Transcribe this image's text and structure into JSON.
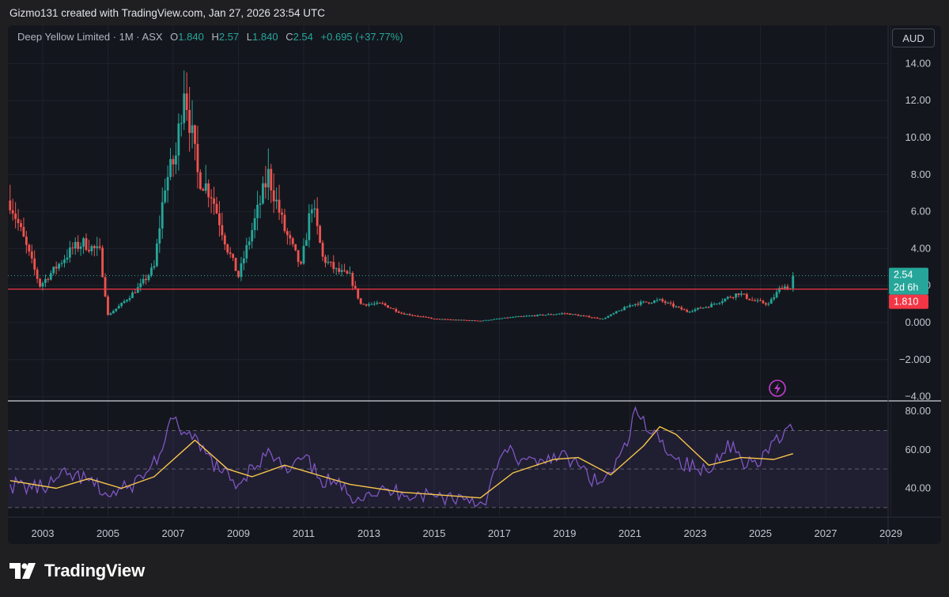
{
  "header": {
    "attribution": "Gizmo131 created with TradingView.com, Jan 27, 2026 23:54 UTC"
  },
  "legend": {
    "symbol": "Deep Yellow Limited · 1M · ASX",
    "open_label": "O",
    "open": "1.840",
    "high_label": "H",
    "high": "2.57",
    "low_label": "L",
    "low": "1.840",
    "close_label": "C",
    "close": "2.54",
    "change": "+0.695 (+37.77%)"
  },
  "currency_button": "AUD",
  "price_tag": {
    "price": "2.54",
    "countdown": "2d 6h"
  },
  "horizontal_line": {
    "value": 1.81,
    "label": "1.810"
  },
  "colors": {
    "up": "#26a69a",
    "down": "#ef5350",
    "rsi": "#7e57c2",
    "rsi_ma": "#f7c64a",
    "hline": "#f23645",
    "background": "#14161d"
  },
  "footer": {
    "brand": "TradingView"
  },
  "icons": {
    "brand": "tradingview-logo-icon",
    "alert": "lightning-icon"
  },
  "chart_data": [
    {
      "type": "candlestick",
      "title": "Deep Yellow Limited · 1M · ASX",
      "timeframe": "1M",
      "x_ticks": [
        "2003",
        "2005",
        "2007",
        "2009",
        "2011",
        "2013",
        "2015",
        "2017",
        "2019",
        "2021",
        "2023",
        "2025",
        "2027",
        "2029"
      ],
      "y_ticks": [
        "14.00",
        "12.00",
        "10.00",
        "8.00",
        "6.00",
        "4.00",
        "2.00",
        "0.000",
        "−2.000",
        "−4.00"
      ],
      "ylim": [
        -4,
        15
      ],
      "last_close": 2.54,
      "price_path": [
        [
          "2002-01",
          6.6
        ],
        [
          "2002-06",
          4.5
        ],
        [
          "2002-12",
          2.0
        ],
        [
          "2003-06",
          3.0
        ],
        [
          "2003-12",
          4.0
        ],
        [
          "2004-04",
          4.3
        ],
        [
          "2004-10",
          3.8
        ],
        [
          "2005-01",
          0.4
        ],
        [
          "2005-06",
          1.0
        ],
        [
          "2006-01",
          2.0
        ],
        [
          "2006-06",
          3.0
        ],
        [
          "2006-10",
          7.5
        ],
        [
          "2007-02",
          9.0
        ],
        [
          "2007-05",
          13.0
        ],
        [
          "2007-10",
          8.0
        ],
        [
          "2008-03",
          7.0
        ],
        [
          "2008-09",
          4.0
        ],
        [
          "2009-01",
          2.5
        ],
        [
          "2009-07",
          5.5
        ],
        [
          "2009-12",
          8.0
        ],
        [
          "2010-06",
          5.0
        ],
        [
          "2010-12",
          3.0
        ],
        [
          "2011-04",
          6.5
        ],
        [
          "2011-08",
          3.5
        ],
        [
          "2012-01",
          2.8
        ],
        [
          "2012-06",
          2.5
        ],
        [
          "2012-10",
          1.0
        ],
        [
          "2013-06",
          1.0
        ],
        [
          "2014-01",
          0.5
        ],
        [
          "2015-01",
          0.2
        ],
        [
          "2016-06",
          0.1
        ],
        [
          "2017-06",
          0.3
        ],
        [
          "2019-01",
          0.5
        ],
        [
          "2020-03",
          0.2
        ],
        [
          "2021-02",
          1.0
        ],
        [
          "2021-12",
          1.2
        ],
        [
          "2022-10",
          0.6
        ],
        [
          "2023-06",
          0.9
        ],
        [
          "2024-05",
          1.6
        ],
        [
          "2024-10",
          1.2
        ],
        [
          "2025-04",
          1.0
        ],
        [
          "2025-09",
          2.0
        ],
        [
          "2025-12",
          1.84
        ],
        [
          "2026-01",
          2.54
        ]
      ]
    },
    {
      "type": "line",
      "title": "RSI",
      "y_ticks": [
        "80.00",
        "60.00",
        "40.00"
      ],
      "band": [
        30,
        70
      ],
      "ylim": [
        25,
        85
      ],
      "series": [
        {
          "role": "rsi",
          "points": [
            [
              "2002-01",
              42
            ],
            [
              "2003-01",
              40
            ],
            [
              "2003-10",
              47
            ],
            [
              "2004-06",
              44
            ],
            [
              "2005-01",
              36
            ],
            [
              "2005-08",
              40
            ],
            [
              "2006-03",
              48
            ],
            [
              "2006-09",
              60
            ],
            [
              "2007-01",
              76
            ],
            [
              "2007-06",
              68
            ],
            [
              "2008-01",
              58
            ],
            [
              "2008-07",
              48
            ],
            [
              "2009-01",
              42
            ],
            [
              "2009-06",
              52
            ],
            [
              "2010-01",
              58
            ],
            [
              "2010-07",
              48
            ],
            [
              "2011-01",
              56
            ],
            [
              "2011-07",
              45
            ],
            [
              "2012-01",
              42
            ],
            [
              "2012-06",
              36
            ],
            [
              "2013-01",
              38
            ],
            [
              "2014-01",
              38
            ],
            [
              "2015-01",
              36
            ],
            [
              "2016-01",
              35
            ],
            [
              "2016-07",
              32
            ],
            [
              "2016-12",
              50
            ],
            [
              "2017-03",
              60
            ],
            [
              "2017-09",
              55
            ],
            [
              "2018-03",
              52
            ],
            [
              "2018-09",
              58
            ],
            [
              "2019-06",
              52
            ],
            [
              "2020-01",
              42
            ],
            [
              "2020-06",
              48
            ],
            [
              "2020-12",
              62
            ],
            [
              "2021-03",
              82
            ],
            [
              "2021-07",
              70
            ],
            [
              "2022-01",
              65
            ],
            [
              "2022-06",
              55
            ],
            [
              "2023-01",
              50
            ],
            [
              "2023-06",
              48
            ],
            [
              "2024-01",
              65
            ],
            [
              "2024-06",
              55
            ],
            [
              "2025-01",
              52
            ],
            [
              "2025-06",
              65
            ],
            [
              "2026-01",
              70
            ]
          ]
        },
        {
          "role": "rsi-ma",
          "points": [
            [
              "2002-01",
              44
            ],
            [
              "2003-06",
              40
            ],
            [
              "2004-06",
              45
            ],
            [
              "2005-06",
              40
            ],
            [
              "2006-06",
              46
            ],
            [
              "2007-09",
              65
            ],
            [
              "2008-09",
              50
            ],
            [
              "2009-06",
              46
            ],
            [
              "2010-06",
              52
            ],
            [
              "2011-06",
              47
            ],
            [
              "2012-06",
              42
            ],
            [
              "2014-01",
              38
            ],
            [
              "2016-06",
              35
            ],
            [
              "2017-06",
              48
            ],
            [
              "2018-09",
              55
            ],
            [
              "2019-06",
              56
            ],
            [
              "2020-06",
              47
            ],
            [
              "2021-06",
              62
            ],
            [
              "2021-12",
              72
            ],
            [
              "2022-06",
              68
            ],
            [
              "2023-06",
              52
            ],
            [
              "2024-06",
              56
            ],
            [
              "2025-06",
              55
            ],
            [
              "2026-01",
              58
            ]
          ]
        }
      ]
    }
  ]
}
